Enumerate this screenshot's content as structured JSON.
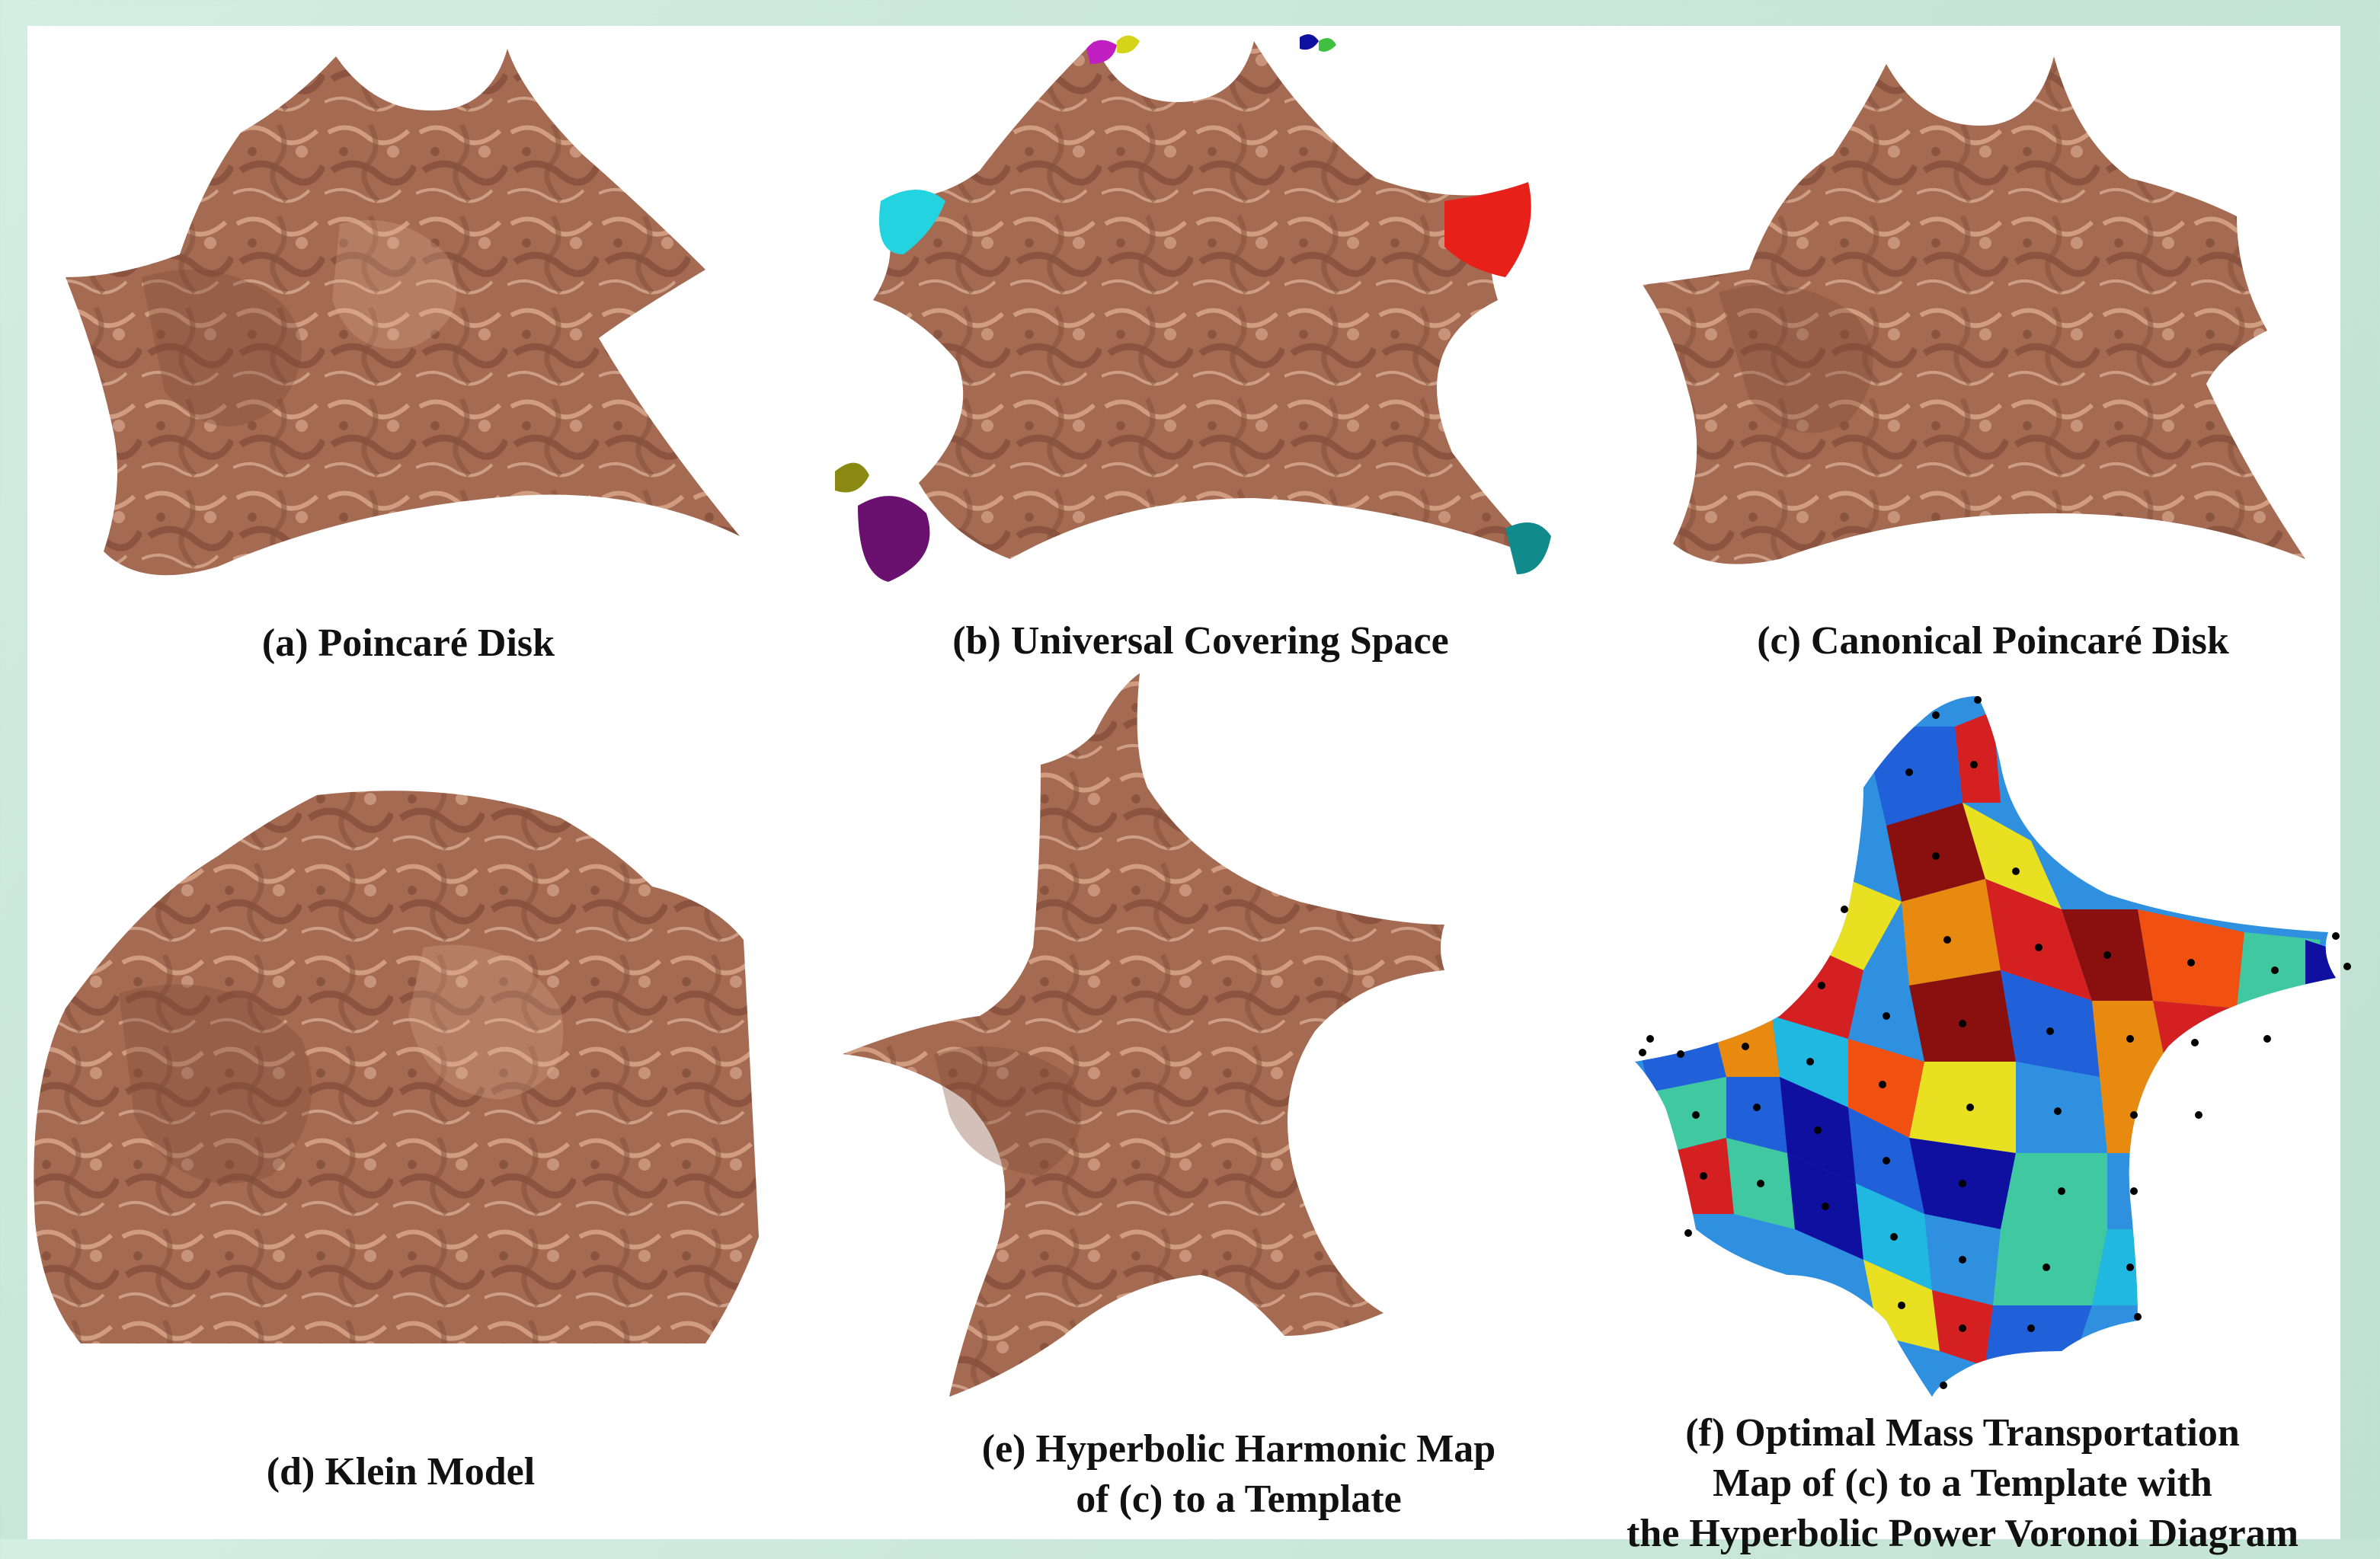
{
  "figure": {
    "panels": [
      {
        "id": "a",
        "caption": [
          "(a) Poincaré  Disk"
        ]
      },
      {
        "id": "b",
        "caption": [
          "(b) Universal Covering Space"
        ]
      },
      {
        "id": "c",
        "caption": [
          "(c) Canonical Poincaré  Disk"
        ]
      },
      {
        "id": "d",
        "caption": [
          "(d) Klein Model"
        ]
      },
      {
        "id": "e",
        "caption": [
          "(e) Hyperbolic Harmonic Map",
          "of (c) to a Template"
        ]
      },
      {
        "id": "f",
        "caption": [
          "(f) Optimal Mass Transportation",
          "Map of (c) to a Template with",
          "the Hyperbolic Power Voronoi Diagram"
        ]
      }
    ]
  },
  "colors": {
    "surface": "#a56a52",
    "surface_highlight": "#e7b79b",
    "surface_shadow": "#7d4a37",
    "copy_cyan": "#23d3e0",
    "copy_red": "#e8201a",
    "copy_purple": "#6a1170",
    "copy_olive": "#8a8a12",
    "copy_teal": "#108a8a",
    "copy_magenta": "#c01ec0",
    "voronoi": [
      "#d42020",
      "#2060d8",
      "#e8e020",
      "#20b8e0",
      "#e88a10",
      "#8a1010",
      "#1010a0",
      "#40c8a0",
      "#f05010",
      "#3090e0"
    ]
  }
}
